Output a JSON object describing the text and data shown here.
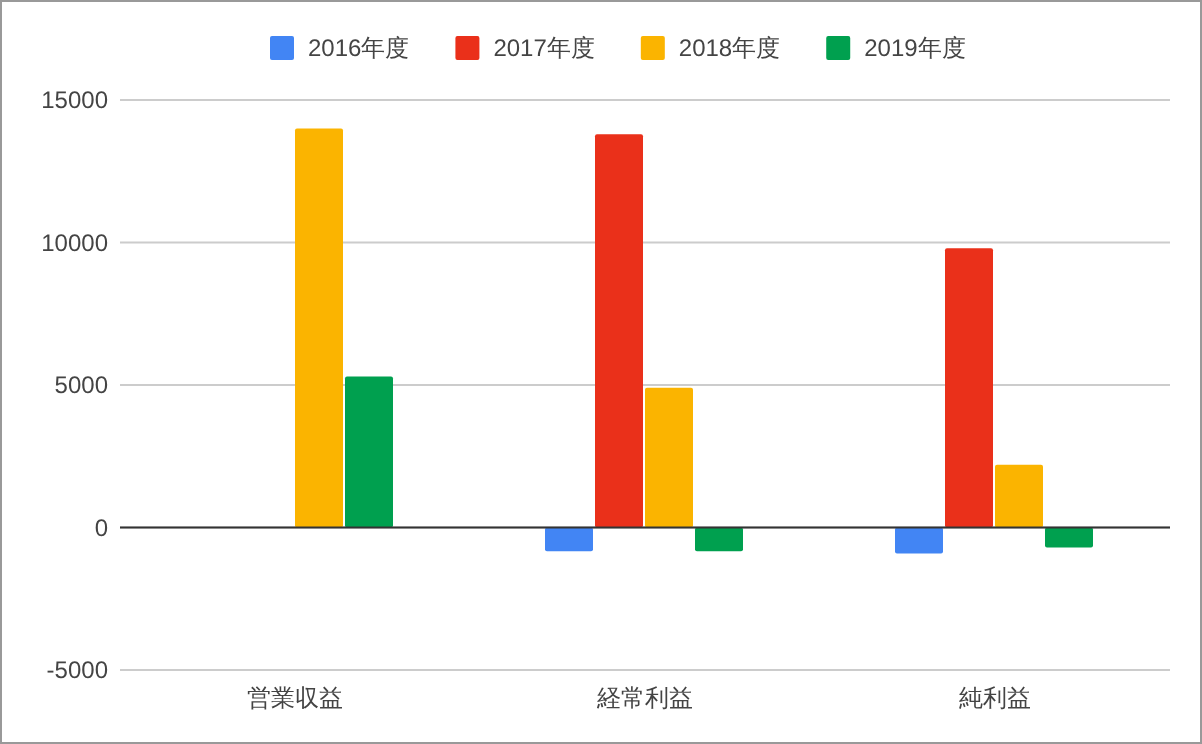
{
  "chart_data": {
    "type": "bar",
    "categories": [
      "営業収益",
      "経常利益",
      "純利益"
    ],
    "series": [
      {
        "name": "2016年度",
        "color": "#4285f4",
        "values": [
          null,
          -830,
          -910
        ]
      },
      {
        "name": "2017年度",
        "color": "#ea301a",
        "values": [
          null,
          13800,
          9800
        ]
      },
      {
        "name": "2018年度",
        "color": "#fbb400",
        "values": [
          14000,
          4900,
          2200
        ]
      },
      {
        "name": "2019年度",
        "color": "#00a04f",
        "values": [
          5300,
          -830,
          -700
        ]
      }
    ],
    "ylim": [
      -5000,
      15000
    ],
    "yticks": [
      -5000,
      0,
      5000,
      10000,
      15000
    ],
    "grid": "y",
    "legend": "top"
  }
}
